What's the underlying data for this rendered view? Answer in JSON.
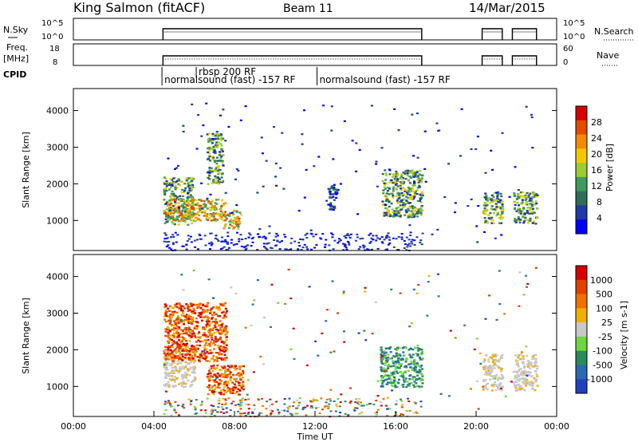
{
  "header": {
    "station": "King Salmon (fitACF)",
    "beam": "Beam 11",
    "date": "14/Mar/2015"
  },
  "status_panels": {
    "nsky_label": "N.Sky",
    "nsky_ticks": [
      "10^5",
      "10^0"
    ],
    "nsearch_label": "N.Search",
    "nsearch_ticks": [
      "10^5",
      "10^0"
    ],
    "freq_label": "Freq.",
    "freq_unit": "[MHz]",
    "freq_ticks": [
      "18",
      "8"
    ],
    "nave_label": "Nave",
    "nave_ticks": [
      "60",
      "0"
    ],
    "cpid_label": "CPID",
    "cpid_entries": [
      {
        "text": "rbsp 200 RF",
        "start_h": 6.1
      },
      {
        "text": "normalsound (fast) -157 RF",
        "start_h": 4.4
      },
      {
        "text": "normalsound (fast) -157 RF",
        "start_h": 12.1
      }
    ]
  },
  "chart_data": [
    {
      "type": "heatmap",
      "name": "power",
      "xlabel": "",
      "ylabel": "Slant Range [km]",
      "xlim": [
        0,
        24
      ],
      "ylim": [
        180,
        4600
      ],
      "yticks": [
        1000,
        2000,
        3000,
        4000
      ],
      "colorbar": {
        "label": "Power [dB]",
        "ticks": [
          "28",
          "24",
          "20",
          "16",
          "12",
          "8",
          "4"
        ],
        "colors": [
          "#0000ff",
          "#1d3aa6",
          "#2e6e58",
          "#3f9a5c",
          "#9bcc31",
          "#f3c800",
          "#f48a00",
          "#e34a00",
          "#d70000"
        ]
      },
      "regions": [
        {
          "x": [
            4.45,
            5.95
          ],
          "y": [
            900,
            2200
          ],
          "level": "mid"
        },
        {
          "x": [
            4.45,
            7.5
          ],
          "y": [
            1000,
            1600
          ],
          "level": "high"
        },
        {
          "x": [
            6.6,
            7.4
          ],
          "y": [
            2000,
            3400
          ],
          "level": "mid"
        },
        {
          "x": [
            7.4,
            8.3
          ],
          "y": [
            800,
            1300
          ],
          "level": "high"
        },
        {
          "x": [
            15.3,
            17.3
          ],
          "y": [
            1100,
            2400
          ],
          "level": "mid"
        },
        {
          "x": [
            12.6,
            13.1
          ],
          "y": [
            1300,
            2000
          ],
          "level": "low"
        },
        {
          "x": [
            20.3,
            21.3
          ],
          "y": [
            950,
            1800
          ],
          "level": "mid"
        },
        {
          "x": [
            21.8,
            23.0
          ],
          "y": [
            950,
            1800
          ],
          "level": "mid"
        }
      ]
    },
    {
      "type": "heatmap",
      "name": "velocity",
      "xlabel": "Time UT",
      "ylabel": "Slant Range [km]",
      "xlim": [
        0,
        24
      ],
      "ylim": [
        180,
        4600
      ],
      "xticks": [
        "00:00",
        "04:00",
        "08:00",
        "12:00",
        "16:00",
        "20:00",
        "00:00"
      ],
      "yticks": [
        1000,
        2000,
        3000,
        4000
      ],
      "colorbar": {
        "label": "Velocity [m s-1]",
        "ticks": [
          "1000",
          "500",
          "100",
          "25",
          "-25",
          "-100",
          "-500",
          "-1000"
        ],
        "colors": [
          "#2040c0",
          "#2a6ab0",
          "#2a8a5a",
          "#6cd840",
          "#c8c8c8",
          "#f0b000",
          "#f07000",
          "#e04000",
          "#d60000"
        ]
      },
      "regions": [
        {
          "x": [
            4.45,
            6.0
          ],
          "y": [
            1000,
            2000
          ],
          "level": "ground"
        },
        {
          "x": [
            4.45,
            7.6
          ],
          "y": [
            1700,
            3300
          ],
          "level": "away"
        },
        {
          "x": [
            6.6,
            8.4
          ],
          "y": [
            800,
            1600
          ],
          "level": "away"
        },
        {
          "x": [
            15.2,
            17.3
          ],
          "y": [
            1000,
            2100
          ],
          "level": "toward"
        },
        {
          "x": [
            20.3,
            21.3
          ],
          "y": [
            900,
            1900
          ],
          "level": "ground"
        },
        {
          "x": [
            21.8,
            23.0
          ],
          "y": [
            900,
            1900
          ],
          "level": "ground"
        }
      ]
    }
  ]
}
